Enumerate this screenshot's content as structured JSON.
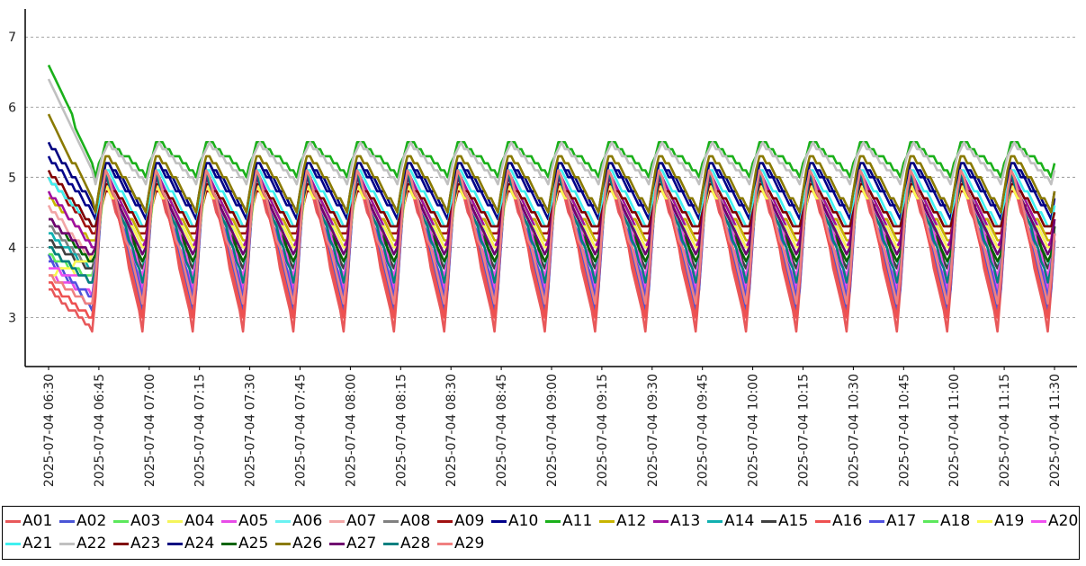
{
  "chart_data": {
    "type": "line",
    "title": "",
    "xlabel": "",
    "ylabel": "",
    "ylim": [
      2.3,
      7.4
    ],
    "yticks": [
      3,
      4,
      5,
      6,
      7
    ],
    "y_grid": true,
    "legend_position": "bottom",
    "x_tick_labels": [
      "2025-07-04  06:30",
      "2025-07-04  06:45",
      "2025-07-04  07:00",
      "2025-07-04  07:15",
      "2025-07-04  07:30",
      "2025-07-04  07:45",
      "2025-07-04  08:00",
      "2025-07-04  08:15",
      "2025-07-04  08:30",
      "2025-07-04  08:45",
      "2025-07-04  09:00",
      "2025-07-04  09:15",
      "2025-07-04  09:30",
      "2025-07-04  09:45",
      "2025-07-04  10:00",
      "2025-07-04  10:15",
      "2025-07-04  10:30",
      "2025-07-04  10:45",
      "2025-07-04  11:00",
      "2025-07-04  11:15",
      "2025-07-04  11:30"
    ],
    "x_time_start": "06:30",
    "x_time_end": "11:30",
    "x_sample_interval": "1 minute",
    "series": [
      {
        "name": "A01",
        "color": "#e8585a",
        "peak": 5.2,
        "trough": 2.75,
        "start": 3.4,
        "phase": 1.0
      },
      {
        "name": "A02",
        "color": "#4a55d6",
        "peak": 5.15,
        "trough": 3.0,
        "start": 3.9,
        "phase": 0.9
      },
      {
        "name": "A03",
        "color": "#5ce85c",
        "peak": 5.1,
        "trough": 3.4,
        "start": 4.0,
        "phase": 0.85
      },
      {
        "name": "A04",
        "color": "#f5f55a",
        "peak": 5.0,
        "trough": 3.6,
        "start": 3.7,
        "phase": 0.7
      },
      {
        "name": "A05",
        "color": "#e84ce8",
        "peak": 5.1,
        "trough": 3.3,
        "start": 3.6,
        "phase": 0.95
      },
      {
        "name": "A06",
        "color": "#6af2f2",
        "peak": 5.1,
        "trough": 3.8,
        "start": 4.2,
        "phase": 0.8
      },
      {
        "name": "A07",
        "color": "#f2a6a6",
        "peak": 5.0,
        "trough": 3.7,
        "start": 4.6,
        "phase": 0.8
      },
      {
        "name": "A08",
        "color": "#808080",
        "peak": 5.1,
        "trough": 3.6,
        "start": 4.3,
        "phase": 0.85
      },
      {
        "name": "A09",
        "color": "#a01010",
        "peak": 4.85,
        "trough": 4.1,
        "start": 5.0,
        "phase": 0.6
      },
      {
        "name": "A10",
        "color": "#00008a",
        "peak": 5.2,
        "trough": 4.4,
        "start": 5.3,
        "phase": 0.5
      },
      {
        "name": "A11",
        "color": "#1ab01a",
        "peak": 5.55,
        "trough": 5.0,
        "start": 6.6,
        "phase": 0.35
      },
      {
        "name": "A12",
        "color": "#c8b400",
        "peak": 5.0,
        "trough": 4.0,
        "start": 4.7,
        "phase": 0.65
      },
      {
        "name": "A13",
        "color": "#a010a0",
        "peak": 5.1,
        "trough": 3.9,
        "start": 4.8,
        "phase": 0.7
      },
      {
        "name": "A14",
        "color": "#10b0b0",
        "peak": 5.1,
        "trough": 3.6,
        "start": 4.2,
        "phase": 0.8
      },
      {
        "name": "A15",
        "color": "#404040",
        "peak": 5.0,
        "trough": 3.6,
        "start": 4.1,
        "phase": 0.8
      },
      {
        "name": "A16",
        "color": "#ee5050",
        "peak": 5.2,
        "trough": 2.9,
        "start": 3.5,
        "phase": 1.0
      },
      {
        "name": "A17",
        "color": "#5050e0",
        "peak": 5.15,
        "trough": 3.2,
        "start": 3.8,
        "phase": 0.9
      },
      {
        "name": "A18",
        "color": "#5ce85c",
        "peak": 5.1,
        "trough": 3.5,
        "start": 3.9,
        "phase": 0.85
      },
      {
        "name": "A19",
        "color": "#fafa50",
        "peak": 4.9,
        "trough": 3.9,
        "start": 3.6,
        "phase": 0.65
      },
      {
        "name": "A20",
        "color": "#f050f0",
        "peak": 5.1,
        "trough": 3.5,
        "start": 3.7,
        "phase": 0.9
      },
      {
        "name": "A21",
        "color": "#40f0f0",
        "peak": 5.15,
        "trough": 4.2,
        "start": 5.0,
        "phase": 0.7
      },
      {
        "name": "A22",
        "color": "#c0c0c0",
        "peak": 5.5,
        "trough": 4.9,
        "start": 6.4,
        "phase": 0.4
      },
      {
        "name": "A23",
        "color": "#800000",
        "peak": 4.95,
        "trough": 4.2,
        "start": 5.1,
        "phase": 0.6
      },
      {
        "name": "A24",
        "color": "#000080",
        "peak": 5.25,
        "trough": 4.5,
        "start": 5.5,
        "phase": 0.5
      },
      {
        "name": "A25",
        "color": "#006400",
        "peak": 5.0,
        "trough": 3.7,
        "start": 4.4,
        "phase": 0.75
      },
      {
        "name": "A26",
        "color": "#8a7a00",
        "peak": 5.35,
        "trough": 4.5,
        "start": 5.9,
        "phase": 0.5
      },
      {
        "name": "A27",
        "color": "#700070",
        "peak": 5.0,
        "trough": 3.8,
        "start": 4.4,
        "phase": 0.75
      },
      {
        "name": "A28",
        "color": "#008080",
        "peak": 5.1,
        "trough": 3.4,
        "start": 4.0,
        "phase": 0.85
      },
      {
        "name": "A29",
        "color": "#f08080",
        "peak": 5.2,
        "trough": 3.1,
        "start": 3.6,
        "phase": 0.95
      }
    ]
  }
}
